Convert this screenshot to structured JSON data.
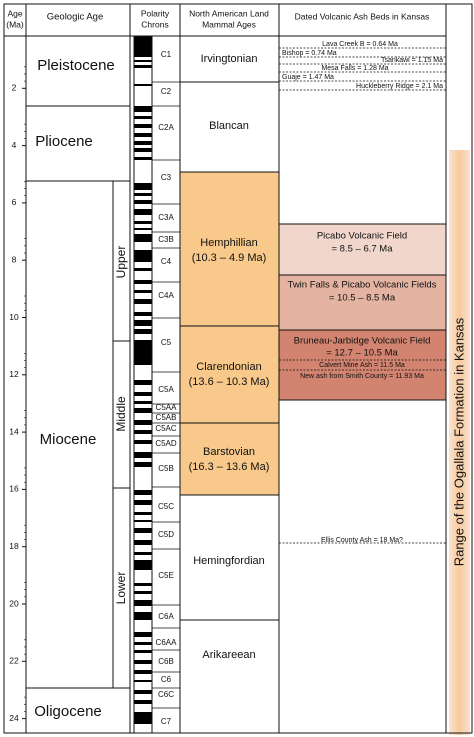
{
  "header": {
    "age": [
      "Age",
      "(Ma)"
    ],
    "geologic_age": "Geologic Age",
    "polarity": [
      "Polarity",
      "Chrons"
    ],
    "nalma": [
      "North American Land",
      "Mammal Ages"
    ],
    "ash": "Dated Volcanic Ash Beds in Kansas"
  },
  "age_ticks": [
    2,
    4,
    6,
    8,
    10,
    12,
    14,
    16,
    18,
    20,
    22,
    24
  ],
  "epochs": [
    "Pleistocene",
    "Pliocene",
    "Miocene",
    "Oligocene"
  ],
  "subepochs": [
    "Upper",
    "Middle",
    "Lower"
  ],
  "chrons": [
    "C1",
    "C2",
    "C2A",
    "C3",
    "C3A",
    "C3B",
    "C4",
    "C4A",
    "C5",
    "C5A",
    "C5AA",
    "C5AB",
    "C5AC",
    "C5AD",
    "C5B",
    "C5C",
    "C5D",
    "C5E",
    "C6A",
    "C6AA",
    "C6B",
    "C6",
    "C6C",
    "C7"
  ],
  "nalma": [
    {
      "lines": [
        "Irvingtonian"
      ]
    },
    {
      "lines": [
        "Blancan"
      ]
    },
    {
      "lines": [
        "Hemphillian",
        "(10.3 – 4.9 Ma)"
      ]
    },
    {
      "lines": [
        "Clarendonian",
        "(13.6 – 10.3 Ma)"
      ]
    },
    {
      "lines": [
        "Barstovian",
        "(16.3 – 13.6 Ma)"
      ]
    },
    {
      "lines": [
        "Hemingfordian"
      ]
    },
    {
      "lines": [
        "Arikareean"
      ]
    }
  ],
  "ash_beds": [
    "Lava Creek B = 0.64 Ma",
    "Bishop = 0.74 Ma",
    "Tsankawi = 1.15 Ma",
    "Mesa Falls = 1.28 Ma",
    "Guaje = 1.47 Ma",
    "Huckleberry Ridge = 2.1 Ma",
    "Calvert Mine Ash = 11.5 Ma",
    "New ash from Smith County = 11.93 Ma",
    "Ellis County Ash = 18 Ma?"
  ],
  "volcanic_fields": [
    {
      "lines": [
        "Picabo Volcanic Field",
        "= 8.5 – 6.7 Ma"
      ]
    },
    {
      "lines": [
        "Twin Falls & Picabo Volcanic Fields",
        "= 10.5 – 8.5 Ma"
      ]
    },
    {
      "lines": [
        "Bruneau-Jarbidge Volcanic Field",
        "= 12.7 – 10.5 Ma"
      ]
    }
  ],
  "ogallala": "Range of the Ogallala Formation in Kansas"
}
